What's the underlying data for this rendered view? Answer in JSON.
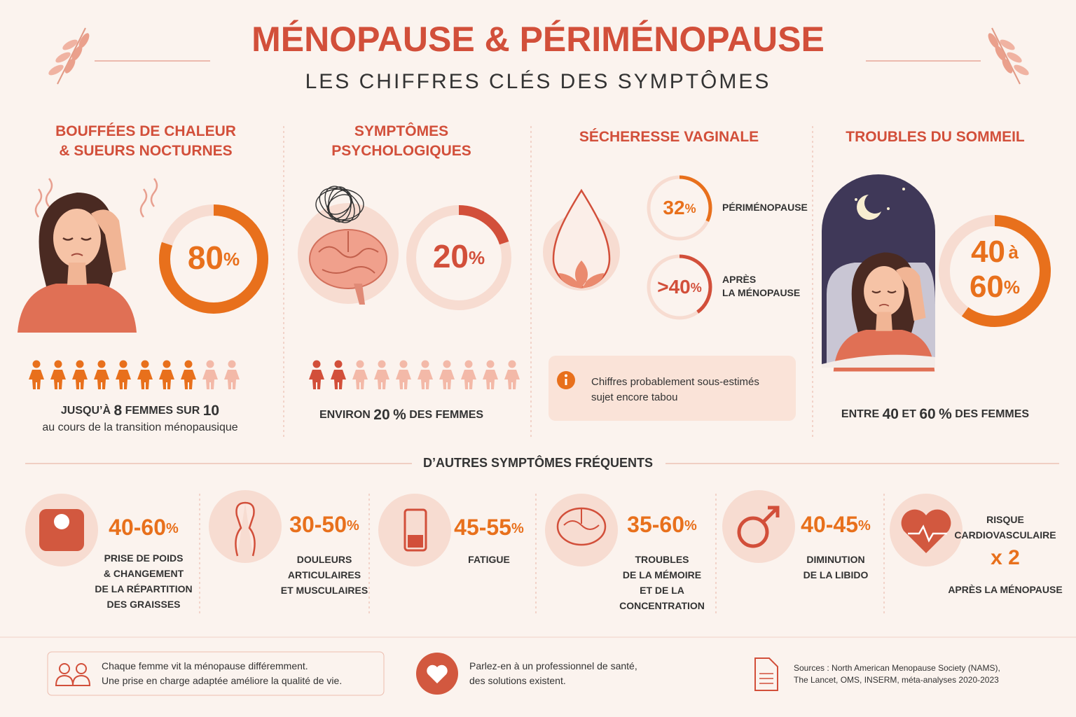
{
  "header": {
    "title": "MÉNOPAUSE & PÉRIMÉNOPAUSE",
    "subtitle": "LES CHIFFRES CLÉS DES SYMPTÔMES"
  },
  "sections": [
    {
      "title_lines": [
        "BOUFFÉES DE CHALEUR",
        "& SUEURS NOCTURNES"
      ],
      "value": 80,
      "unit": "%",
      "caption": {
        "prefix": "JUSQU’À",
        "count": 8,
        "middle": "FEMMES SUR",
        "total": 10
      },
      "note": "au cours de la transition ménopausique"
    },
    {
      "title_lines": [
        "SYMPTÔMES",
        "PSYCHOLOGIQUES"
      ],
      "value": 20,
      "unit": "%",
      "caption": {
        "prefix": "ENVIRON",
        "value": 20,
        "unit": "%",
        "suffix": "DES FEMMES"
      }
    },
    {
      "title_lines": [
        "SÉCHERESSE VAGINALE"
      ],
      "stats": [
        {
          "value": 32,
          "unit": "%",
          "label_lines": [
            "PÉRIMÉNOPAUSE"
          ]
        },
        {
          "value": {
            "value": 40,
            "label": ">40"
          },
          "unit": "%",
          "label_lines": [
            "APRÈS",
            "LA MÉNOPAUSE"
          ]
        }
      ],
      "info_lines": [
        "Chiffres probablement sous-estimés",
        "sujet encore tabou"
      ]
    },
    {
      "title_lines": [
        "TROUBLES DU SOMMEIL"
      ],
      "low": 40,
      "joiner": "à",
      "high": 60,
      "unit": "%",
      "caption": {
        "prefix": "ENTRE",
        "low": 40,
        "joiner": "ET",
        "high": 60,
        "unit": "%",
        "suffix": "DES FEMMES"
      }
    }
  ],
  "others": {
    "title": "D’AUTRES SYMPTÔMES FRÉQUENTS",
    "items": [
      {
        "figure": "40-60",
        "unit": "%",
        "label_lines": [
          "PRISE DE POIDS",
          "& CHANGEMENT",
          "DE LA RÉPARTITION",
          "DES GRAISSES"
        ]
      },
      {
        "figure": "30-50",
        "unit": "%",
        "label_lines": [
          "DOULEURS",
          "ARTICULAIRES",
          "ET MUSCULAIRES"
        ]
      },
      {
        "figure": "45-55",
        "unit": "%",
        "label_lines": [
          "FATIGUE"
        ]
      },
      {
        "figure": "35-60",
        "unit": "%",
        "label_lines": [
          "TROUBLES",
          "DE LA MÉMOIRE",
          "ET DE LA",
          "CONCENTRATION"
        ]
      },
      {
        "figure": "40-45",
        "unit": "%",
        "label_lines": [
          "DIMINUTION",
          "DE LA LIBIDO"
        ]
      },
      {
        "top_lines": [
          "RISQUE",
          "CARDIOVASCULAIRE"
        ],
        "figure": "x 2",
        "label_lines": [
          "APRÈS LA MÉNOPAUSE"
        ]
      }
    ]
  },
  "footer": {
    "left_lines": [
      "Chaque femme vit la ménopause différemment.",
      "Une prise en charge adaptée améliore la qualité de vie."
    ],
    "middle_lines": [
      "Parlez-en à un professionnel de santé,",
      "des solutions existent."
    ],
    "sources_label": "Sources :",
    "sources_lines": [
      "North American Menopause Society (NAMS),",
      "The Lancet, OMS, INSERM, méta-analyses 2020-2023"
    ]
  }
}
